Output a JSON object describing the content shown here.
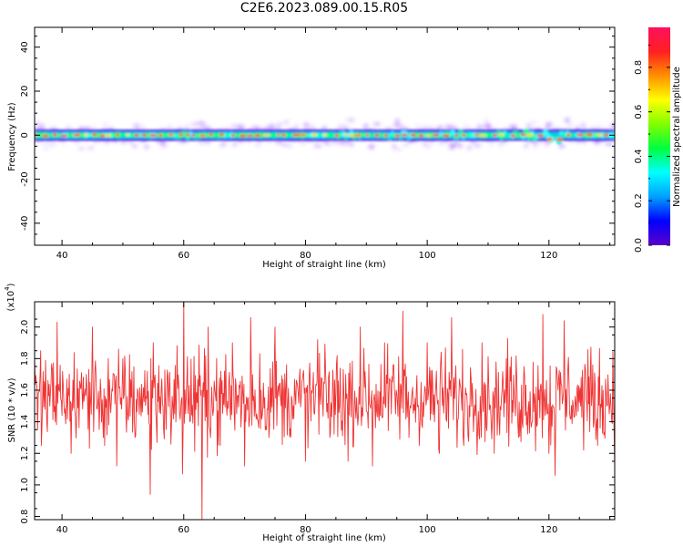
{
  "figure_title": "C2E6.2023.089.00.15.R05",
  "colors": {
    "spectrum_noise": "#9a52ff",
    "snr_line": "#f03434"
  },
  "chart_data": [
    {
      "type": "heatmap",
      "xlabel": "Height of straight line (km)",
      "ylabel": "Frequency (Hz)",
      "xlim": [
        35.5,
        130.8
      ],
      "ylim": [
        -50,
        49
      ],
      "xticks": [
        40,
        60,
        80,
        100,
        120
      ],
      "yticks": [
        40,
        20,
        0,
        -20,
        -40
      ],
      "colorbar": {
        "label": "Normalized spectral amplitude",
        "range": [
          0.0,
          0.98
        ],
        "ticks": [
          0.0,
          0.2,
          0.4,
          0.6,
          0.8
        ],
        "colormap": [
          "#5d00c8",
          "#0000ff",
          "#00a0ff",
          "#00ffff",
          "#00ff40",
          "#80ff00",
          "#ffff00",
          "#ff9000",
          "#ff2020",
          "#ff1060"
        ]
      },
      "ridge": {
        "center_hz": 0,
        "wobble_x": [
          61,
          87,
          95,
          104,
          114,
          118,
          121
        ],
        "dip_x": 121,
        "dip_hz": -2
      }
    },
    {
      "type": "line",
      "xlabel": "Height of straight line (km)",
      "ylabel": "SNR (10 * v/v)",
      "multiplier_label": "(x10",
      "multiplier_exponent": "4",
      "xlim": [
        35.5,
        130.8
      ],
      "ylim": [
        0.78,
        2.16
      ],
      "xticks": [
        40,
        60,
        80,
        100,
        120
      ],
      "yticks": [
        0.8,
        1.0,
        1.2,
        1.4,
        1.6,
        1.8,
        2.0
      ],
      "series": [
        {
          "baseline": 1.55,
          "points": [
            [
              35.5,
              1.8
            ],
            [
              36,
              1.35
            ],
            [
              38,
              1.5
            ],
            [
              39.2,
              2.03
            ],
            [
              41.5,
              1.2
            ],
            [
              44,
              1.7
            ],
            [
              45,
              2.0
            ],
            [
              47,
              1.25
            ],
            [
              49,
              1.12
            ],
            [
              50,
              1.8
            ],
            [
              52,
              1.3
            ],
            [
              54.5,
              0.94
            ],
            [
              55,
              1.9
            ],
            [
              58,
              1.4
            ],
            [
              59.8,
              1.07
            ],
            [
              60,
              2.16
            ],
            [
              61,
              1.4
            ],
            [
              63,
              0.78
            ],
            [
              64,
              2.0
            ],
            [
              66,
              1.25
            ],
            [
              68,
              1.9
            ],
            [
              70,
              1.12
            ],
            [
              71,
              2.06
            ],
            [
              74,
              1.3
            ],
            [
              75,
              2.0
            ],
            [
              78,
              1.5
            ],
            [
              80,
              1.15
            ],
            [
              82,
              1.92
            ],
            [
              84,
              1.3
            ],
            [
              87,
              1.15
            ],
            [
              89,
              2.0
            ],
            [
              91,
              1.12
            ],
            [
              93,
              1.9
            ],
            [
              96,
              2.1
            ],
            [
              97,
              1.3
            ],
            [
              100,
              1.9
            ],
            [
              102,
              1.2
            ],
            [
              104,
              2.06
            ],
            [
              106,
              1.25
            ],
            [
              109,
              1.9
            ],
            [
              111,
              1.2
            ],
            [
              113,
              1.8
            ],
            [
              115,
              1.3
            ],
            [
              117,
              1.4
            ],
            [
              119,
              2.08
            ],
            [
              120,
              1.2
            ],
            [
              121,
              1.06
            ],
            [
              121.5,
              1.6
            ],
            [
              122.5,
              2.04
            ],
            [
              124,
              1.5
            ],
            [
              126,
              1.73
            ],
            [
              128,
              1.25
            ],
            [
              129.5,
              1.5
            ],
            [
              130.8,
              1.1
            ]
          ]
        }
      ]
    }
  ]
}
